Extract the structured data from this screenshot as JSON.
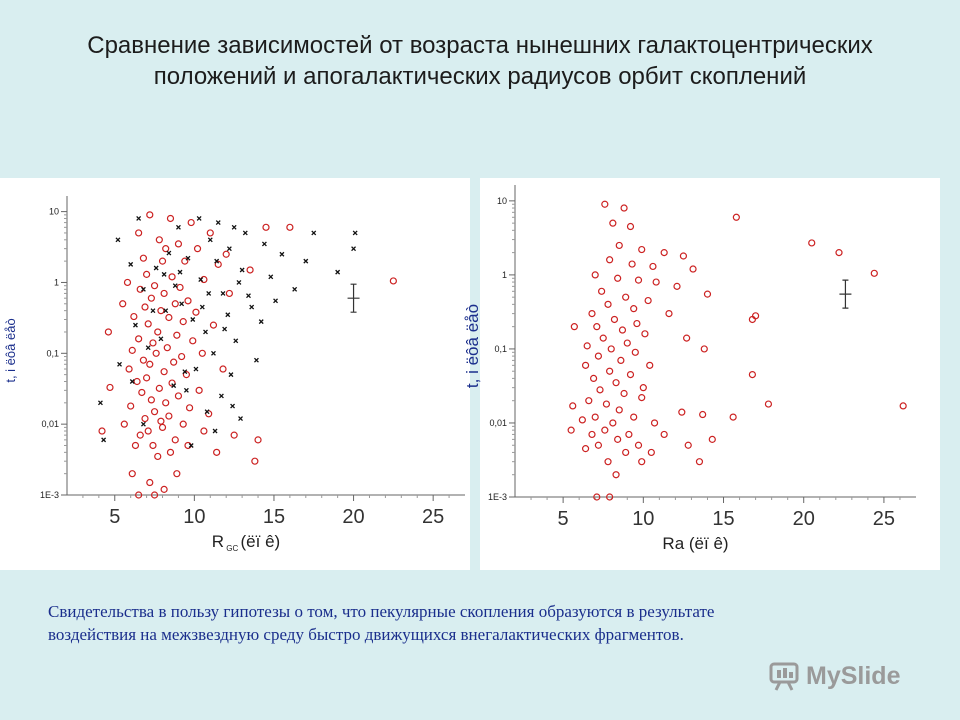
{
  "title": {
    "line1": "Сравнение зависимостей от возраста нынешних галактоцентрических",
    "line2": "положений и апогалактических радиусов орбит скоплений"
  },
  "caption": {
    "line1": "Свидетельства в пользу гипотезы о том, что пекулярные скопления образуются в результате",
    "line2": "воздействия на межзвездную среду быстро движущихся внегалактических фрагментов."
  },
  "watermark": {
    "text": "MySlide"
  },
  "colors": {
    "background": "#d9eef0",
    "red": "#cc2222",
    "black": "#111111",
    "caption": "#1a2e8c"
  },
  "chart_data": [
    {
      "type": "scatter",
      "xlabel": "R",
      "xlabel_sub": "GC",
      "xlabel_units": "(ëï ê)",
      "ylabel": "t, i ëôâ ëåò",
      "yscale": "log",
      "xlim": [
        2,
        27
      ],
      "ylim": [
        0.001,
        12
      ],
      "xticks": [
        "5",
        "10",
        "15",
        "20",
        "25"
      ],
      "yticks": [
        "10",
        "1",
        "0,1",
        "0,01",
        "1E-3"
      ],
      "error_bar": {
        "x": 20,
        "y": 0.6
      },
      "series": [
        {
          "marker": "open-circle",
          "color": "#cc2222",
          "points": [
            [
              7.2,
              9
            ],
            [
              8.5,
              8
            ],
            [
              9.8,
              7
            ],
            [
              14.5,
              6
            ],
            [
              16,
              6
            ],
            [
              6.5,
              5
            ],
            [
              11,
              5
            ],
            [
              7.8,
              4
            ],
            [
              9,
              3.5
            ],
            [
              8.2,
              3
            ],
            [
              10.2,
              3
            ],
            [
              12,
              2.5
            ],
            [
              6.8,
              2.2
            ],
            [
              8,
              2
            ],
            [
              9.4,
              2
            ],
            [
              11.5,
              1.8
            ],
            [
              13.5,
              1.5
            ],
            [
              7,
              1.3
            ],
            [
              8.6,
              1.2
            ],
            [
              10.6,
              1.1
            ],
            [
              22.5,
              1.05
            ],
            [
              5.8,
              1
            ],
            [
              7.5,
              0.9
            ],
            [
              9.1,
              0.85
            ],
            [
              6.6,
              0.8
            ],
            [
              8.1,
              0.7
            ],
            [
              12.2,
              0.7
            ],
            [
              7.3,
              0.6
            ],
            [
              9.6,
              0.55
            ],
            [
              5.5,
              0.5
            ],
            [
              8.8,
              0.5
            ],
            [
              6.9,
              0.45
            ],
            [
              7.9,
              0.4
            ],
            [
              10.1,
              0.38
            ],
            [
              6.2,
              0.33
            ],
            [
              8.4,
              0.32
            ],
            [
              9.3,
              0.28
            ],
            [
              7.1,
              0.26
            ],
            [
              11.2,
              0.25
            ],
            [
              4.6,
              0.2
            ],
            [
              7.7,
              0.2
            ],
            [
              8.9,
              0.18
            ],
            [
              6.5,
              0.16
            ],
            [
              9.9,
              0.15
            ],
            [
              7.4,
              0.14
            ],
            [
              8.3,
              0.12
            ],
            [
              6.1,
              0.11
            ],
            [
              10.5,
              0.1
            ],
            [
              7.6,
              0.1
            ],
            [
              9.2,
              0.09
            ],
            [
              6.8,
              0.08
            ],
            [
              8.7,
              0.075
            ],
            [
              7.2,
              0.07
            ],
            [
              11.8,
              0.06
            ],
            [
              5.9,
              0.06
            ],
            [
              8.1,
              0.055
            ],
            [
              9.5,
              0.05
            ],
            [
              7.0,
              0.045
            ],
            [
              6.4,
              0.04
            ],
            [
              8.6,
              0.038
            ],
            [
              4.7,
              0.033
            ],
            [
              7.8,
              0.032
            ],
            [
              10.3,
              0.03
            ],
            [
              6.7,
              0.028
            ],
            [
              9.0,
              0.025
            ],
            [
              7.3,
              0.022
            ],
            [
              8.2,
              0.02
            ],
            [
              6.0,
              0.018
            ],
            [
              9.7,
              0.017
            ],
            [
              7.5,
              0.015
            ],
            [
              10.9,
              0.014
            ],
            [
              8.4,
              0.013
            ],
            [
              6.9,
              0.012
            ],
            [
              7.9,
              0.011
            ],
            [
              5.6,
              0.01
            ],
            [
              9.3,
              0.01
            ],
            [
              8.0,
              0.009
            ],
            [
              7.1,
              0.008
            ],
            [
              4.2,
              0.008
            ],
            [
              10.6,
              0.008
            ],
            [
              12.5,
              0.007
            ],
            [
              6.6,
              0.007
            ],
            [
              8.8,
              0.006
            ],
            [
              14,
              0.006
            ],
            [
              7.4,
              0.005
            ],
            [
              9.6,
              0.005
            ],
            [
              6.3,
              0.005
            ],
            [
              8.5,
              0.004
            ],
            [
              11.4,
              0.004
            ],
            [
              7.7,
              0.0035
            ],
            [
              13.8,
              0.003
            ],
            [
              6.1,
              0.002
            ],
            [
              8.9,
              0.002
            ],
            [
              7.2,
              0.0015
            ],
            [
              8.1,
              0.0012
            ],
            [
              6.5,
              0.001
            ],
            [
              7.5,
              0.001
            ]
          ]
        },
        {
          "marker": "small-x",
          "color": "#111111",
          "points": [
            [
              6.5,
              8
            ],
            [
              10.3,
              8
            ],
            [
              11.5,
              7
            ],
            [
              9,
              6
            ],
            [
              12.5,
              6
            ],
            [
              13.2,
              5
            ],
            [
              17.5,
              5
            ],
            [
              20.1,
              5
            ],
            [
              5.2,
              4
            ],
            [
              11,
              4
            ],
            [
              14.4,
              3.5
            ],
            [
              12.2,
              3
            ],
            [
              20,
              3
            ],
            [
              15.5,
              2.5
            ],
            [
              9.6,
              2.2
            ],
            [
              11.4,
              2
            ],
            [
              17,
              2
            ],
            [
              6,
              1.8
            ],
            [
              13,
              1.5
            ],
            [
              19,
              1.4
            ],
            [
              8.1,
              1.3
            ],
            [
              14.8,
              1.2
            ],
            [
              10.4,
              1.1
            ],
            [
              12.8,
              1
            ],
            [
              16.3,
              0.8
            ],
            [
              6.8,
              0.8
            ],
            [
              11.8,
              0.7
            ],
            [
              15.1,
              0.55
            ],
            [
              9.2,
              0.5
            ],
            [
              13.6,
              0.45
            ],
            [
              7.4,
              0.4
            ],
            [
              12.1,
              0.35
            ],
            [
              14.2,
              0.28
            ],
            [
              6.3,
              0.25
            ],
            [
              10.7,
              0.2
            ],
            [
              12.6,
              0.15
            ],
            [
              7.1,
              0.12
            ],
            [
              11.2,
              0.1
            ],
            [
              13.9,
              0.08
            ],
            [
              5.3,
              0.07
            ],
            [
              10.1,
              0.06
            ],
            [
              12.3,
              0.05
            ],
            [
              6.1,
              0.04
            ],
            [
              9.5,
              0.03
            ],
            [
              11.7,
              0.025
            ],
            [
              4.1,
              0.02
            ],
            [
              10.8,
              0.015
            ],
            [
              12.9,
              0.012
            ],
            [
              6.8,
              0.01
            ],
            [
              11.3,
              0.008
            ],
            [
              4.3,
              0.006
            ],
            [
              9.8,
              0.005
            ],
            [
              8.2,
              0.4
            ],
            [
              8.8,
              0.9
            ],
            [
              7.6,
              1.6
            ],
            [
              9.9,
              0.3
            ],
            [
              10.9,
              0.7
            ],
            [
              8.4,
              2.6
            ],
            [
              7.9,
              0.16
            ],
            [
              9.4,
              0.055
            ],
            [
              11.9,
              0.22
            ],
            [
              13.4,
              0.65
            ],
            [
              12.4,
              0.018
            ],
            [
              8.7,
              0.035
            ],
            [
              10.5,
              0.45
            ],
            [
              9.1,
              1.4
            ]
          ]
        }
      ]
    },
    {
      "type": "scatter",
      "xlabel": "Ra (ëï ê)",
      "ylabel": "t, i ëôâ ëåò",
      "yscale": "log",
      "xlim": [
        2,
        27
      ],
      "ylim": [
        0.001,
        12
      ],
      "xticks": [
        "5",
        "10",
        "15",
        "20",
        "25"
      ],
      "yticks": [
        "10",
        "1",
        "0,1",
        "0,01",
        "1E-3"
      ],
      "error_bar": {
        "x": 22.6,
        "y": 0.55
      },
      "series": [
        {
          "marker": "open-circle",
          "color": "#cc2222",
          "points": [
            [
              7.6,
              9
            ],
            [
              8.8,
              8
            ],
            [
              15.8,
              6
            ],
            [
              8.1,
              5
            ],
            [
              9.2,
              4.5
            ],
            [
              20.5,
              2.7
            ],
            [
              22.2,
              2
            ],
            [
              8.5,
              2.5
            ],
            [
              9.9,
              2.2
            ],
            [
              11.3,
              2
            ],
            [
              12.5,
              1.8
            ],
            [
              7.9,
              1.6
            ],
            [
              9.3,
              1.4
            ],
            [
              10.6,
              1.3
            ],
            [
              13.1,
              1.2
            ],
            [
              24.4,
              1.05
            ],
            [
              7.0,
              1.0
            ],
            [
              8.4,
              0.9
            ],
            [
              9.7,
              0.85
            ],
            [
              10.8,
              0.8
            ],
            [
              12.1,
              0.7
            ],
            [
              14.0,
              0.55
            ],
            [
              7.4,
              0.6
            ],
            [
              8.9,
              0.5
            ],
            [
              10.3,
              0.45
            ],
            [
              7.8,
              0.4
            ],
            [
              9.4,
              0.35
            ],
            [
              11.6,
              0.3
            ],
            [
              17.0,
              0.28
            ],
            [
              16.8,
              0.25
            ],
            [
              6.8,
              0.3
            ],
            [
              8.2,
              0.25
            ],
            [
              9.6,
              0.22
            ],
            [
              7.1,
              0.2
            ],
            [
              8.7,
              0.18
            ],
            [
              10.1,
              0.16
            ],
            [
              12.7,
              0.14
            ],
            [
              5.7,
              0.2
            ],
            [
              7.5,
              0.14
            ],
            [
              9.0,
              0.12
            ],
            [
              6.5,
              0.11
            ],
            [
              8.0,
              0.1
            ],
            [
              13.8,
              0.1
            ],
            [
              9.5,
              0.09
            ],
            [
              7.2,
              0.08
            ],
            [
              8.6,
              0.07
            ],
            [
              10.4,
              0.06
            ],
            [
              6.4,
              0.06
            ],
            [
              16.8,
              0.045
            ],
            [
              7.9,
              0.05
            ],
            [
              9.2,
              0.045
            ],
            [
              6.9,
              0.04
            ],
            [
              8.3,
              0.035
            ],
            [
              10.0,
              0.03
            ],
            [
              7.3,
              0.028
            ],
            [
              8.8,
              0.025
            ],
            [
              9.9,
              0.022
            ],
            [
              6.6,
              0.02
            ],
            [
              7.7,
              0.018
            ],
            [
              17.8,
              0.018
            ],
            [
              26.2,
              0.017
            ],
            [
              5.6,
              0.017
            ],
            [
              8.5,
              0.015
            ],
            [
              12.4,
              0.014
            ],
            [
              13.7,
              0.013
            ],
            [
              7.0,
              0.012
            ],
            [
              9.4,
              0.012
            ],
            [
              15.6,
              0.012
            ],
            [
              6.2,
              0.011
            ],
            [
              8.1,
              0.01
            ],
            [
              10.7,
              0.01
            ],
            [
              5.5,
              0.008
            ],
            [
              7.6,
              0.008
            ],
            [
              9.1,
              0.007
            ],
            [
              6.8,
              0.007
            ],
            [
              11.3,
              0.007
            ],
            [
              14.3,
              0.006
            ],
            [
              8.4,
              0.006
            ],
            [
              12.8,
              0.005
            ],
            [
              7.2,
              0.005
            ],
            [
              9.7,
              0.005
            ],
            [
              6.4,
              0.0045
            ],
            [
              8.9,
              0.004
            ],
            [
              10.5,
              0.004
            ],
            [
              13.5,
              0.003
            ],
            [
              7.8,
              0.003
            ],
            [
              9.9,
              0.003
            ],
            [
              8.3,
              0.002
            ],
            [
              7.1,
              0.001
            ],
            [
              7.9,
              0.001
            ]
          ]
        }
      ]
    }
  ]
}
